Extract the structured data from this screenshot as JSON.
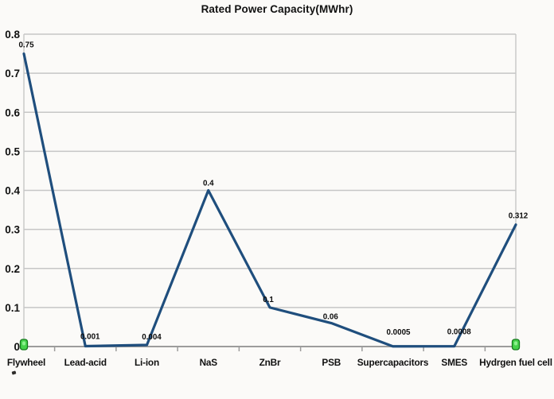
{
  "page": {
    "background": "#fbfaf8"
  },
  "chart_data": {
    "type": "line",
    "title": "Rated Power Capacity(MWhr)",
    "categories": [
      "Flywheel",
      "Lead-acid",
      "Li-ion",
      "NaS",
      "ZnBr",
      "PSB",
      "Supercapacitors",
      "SMES",
      "Hydrgen fuel cell"
    ],
    "values": [
      0.75,
      0.001,
      0.004,
      0.4,
      0.1,
      0.06,
      0.0005,
      0.0008,
      0.312
    ],
    "data_labels": [
      "0.75",
      "0.001",
      "0.004",
      "0.4",
      "0.1",
      "0.06",
      "0.0005",
      "0.0008",
      "0.312"
    ],
    "xlabel": "",
    "ylabel": "",
    "ylim": [
      0,
      0.8
    ],
    "ytick_step": 0.1,
    "ytick_labels": [
      "0.8",
      "0.7",
      "0.6",
      "0.5",
      "0.4",
      "0.3",
      "0.2",
      "0.1",
      "0"
    ],
    "grid": true,
    "legend": "none",
    "series_name": "Rated Power Capacity",
    "markers": "none",
    "selection_handles": "x-axis-ends",
    "colors": {
      "line": "#1f4e7d",
      "grid": "#c6c6c6",
      "axis": "#9c9c9c",
      "text": "#111111",
      "handle_fill": "#46d24b",
      "handle_highlight": "#8cf08e",
      "handle_border": "#157a1c"
    }
  }
}
